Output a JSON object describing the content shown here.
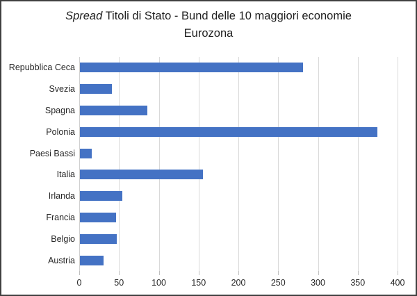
{
  "chart_data": {
    "type": "bar",
    "orientation": "horizontal",
    "title": {
      "italic_part": "Spread",
      "rest_part": " Titoli di Stato - Bund delle 10 maggiori economie",
      "line2": "Eurozona"
    },
    "categories": [
      "Repubblica Ceca",
      "Svezia",
      "Spagna",
      "Polonia",
      "Paesi Bassi",
      "Italia",
      "Irlanda",
      "Francia",
      "Belgio",
      "Austria"
    ],
    "values": [
      280,
      40,
      85,
      374,
      15,
      155,
      53,
      45,
      46,
      30
    ],
    "xlim": [
      0,
      400
    ],
    "xticks": [
      0,
      50,
      100,
      150,
      200,
      250,
      300,
      350,
      400
    ],
    "xlabel": "",
    "ylabel": "",
    "grid": true,
    "legend": false,
    "colors": {
      "bar": "#4472C4",
      "gridline": "#D9D9D9",
      "tick": "#BFBFBF",
      "text": "#262626",
      "border": "#404040"
    }
  }
}
